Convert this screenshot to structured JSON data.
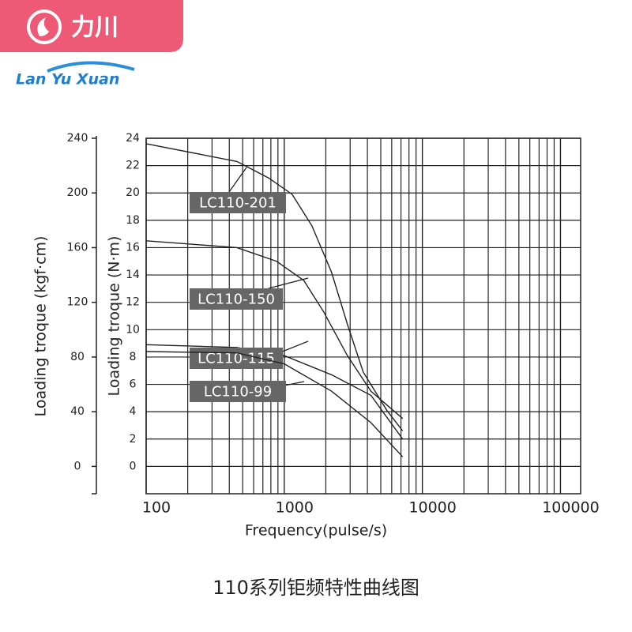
{
  "logo": {
    "name": "力川",
    "brand": "Lan Yu Xuan"
  },
  "chart_data": {
    "type": "line",
    "title": "110系列钜频特性曲线图",
    "x_label": "Frequency(pulse/s)",
    "y_label": "Loading troque (N·m)",
    "y2_label": "Loading troque (kgf·cm)",
    "log_x": true,
    "grid": true,
    "xlim": [
      100,
      140000
    ],
    "xticks": [
      100,
      1000,
      10000,
      100000
    ],
    "ylim": [
      -2,
      24
    ],
    "yticks": [
      0,
      2,
      4,
      6,
      8,
      10,
      12,
      14,
      16,
      18,
      20,
      22,
      24
    ],
    "y2lim": [
      -20,
      240
    ],
    "y2ticks": [
      0,
      40,
      80,
      120,
      160,
      200,
      240
    ],
    "series": [
      {
        "name": "LC110-201",
        "color": "#222222",
        "x": [
          100,
          454,
          769,
          1140,
          1585,
          2200,
          2865,
          3730,
          5530,
          7200
        ],
        "values": [
          23.6,
          22.3,
          21.1,
          19.9,
          17.6,
          14.2,
          10.4,
          6.9,
          4.1,
          2.6
        ]
      },
      {
        "name": "LC110-150",
        "color": "#222222",
        "x": [
          100,
          454,
          880,
          1385,
          1930,
          2865,
          4240,
          7200
        ],
        "values": [
          16.5,
          16.0,
          15.0,
          13.6,
          11.3,
          8.1,
          5.5,
          3.5
        ]
      },
      {
        "name": "LC110-115",
        "color": "#222222",
        "x": [
          100,
          454,
          1000,
          2200,
          4240,
          7200
        ],
        "values": [
          8.9,
          8.7,
          8.1,
          6.7,
          5.2,
          2.0
        ]
      },
      {
        "name": "LC110-99",
        "color": "#222222",
        "x": [
          100,
          454,
          1000,
          2200,
          4240,
          7200
        ],
        "values": [
          8.4,
          8.3,
          7.5,
          5.5,
          3.2,
          0.7
        ]
      }
    ]
  }
}
